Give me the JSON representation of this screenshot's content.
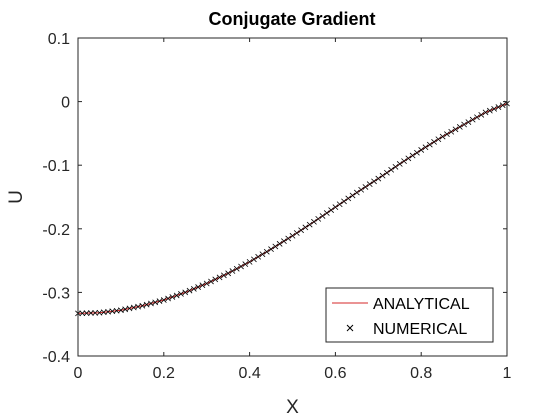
{
  "chart_data": {
    "type": "line",
    "title": "Conjugate Gradient",
    "xlabel": "X",
    "ylabel": "U",
    "xlim": [
      0,
      1
    ],
    "ylim": [
      -0.4,
      0.1
    ],
    "xticks": [
      0,
      0.2,
      0.4,
      0.6,
      0.8,
      1
    ],
    "xtick_labels": [
      "0",
      "0.2",
      "0.4",
      "0.6",
      "0.8",
      "1"
    ],
    "yticks": [
      -0.4,
      -0.3,
      -0.2,
      -0.1,
      0,
      0.1
    ],
    "ytick_labels": [
      "-0.4",
      "-0.3",
      "-0.2",
      "-0.1",
      "0",
      "0.1"
    ],
    "grid": false,
    "legend_position": "bottom-right",
    "series": [
      {
        "name": "ANALYTICAL",
        "style": "line",
        "color": "#d62728",
        "x": [
          0,
          0.05,
          0.1,
          0.15,
          0.2,
          0.25,
          0.3,
          0.35,
          0.4,
          0.45,
          0.5,
          0.55,
          0.6,
          0.65,
          0.7,
          0.75,
          0.8,
          0.85,
          0.9,
          0.95,
          1
        ],
        "y": [
          -0.333,
          -0.332,
          -0.328,
          -0.321,
          -0.312,
          -0.3,
          -0.286,
          -0.27,
          -0.252,
          -0.232,
          -0.211,
          -0.189,
          -0.166,
          -0.143,
          -0.121,
          -0.098,
          -0.076,
          -0.055,
          -0.036,
          -0.017,
          -0.003
        ]
      },
      {
        "name": "NUMERICAL",
        "style": "marker",
        "marker": "x",
        "color": "#000000",
        "x": [
          0,
          0.05,
          0.1,
          0.15,
          0.2,
          0.25,
          0.3,
          0.35,
          0.4,
          0.45,
          0.5,
          0.55,
          0.6,
          0.65,
          0.7,
          0.75,
          0.8,
          0.85,
          0.9,
          0.95,
          1
        ],
        "y": [
          -0.333,
          -0.332,
          -0.328,
          -0.321,
          -0.312,
          -0.3,
          -0.286,
          -0.27,
          -0.252,
          -0.232,
          -0.211,
          -0.189,
          -0.166,
          -0.143,
          -0.121,
          -0.098,
          -0.076,
          -0.055,
          -0.036,
          -0.017,
          -0.003
        ]
      }
    ]
  }
}
